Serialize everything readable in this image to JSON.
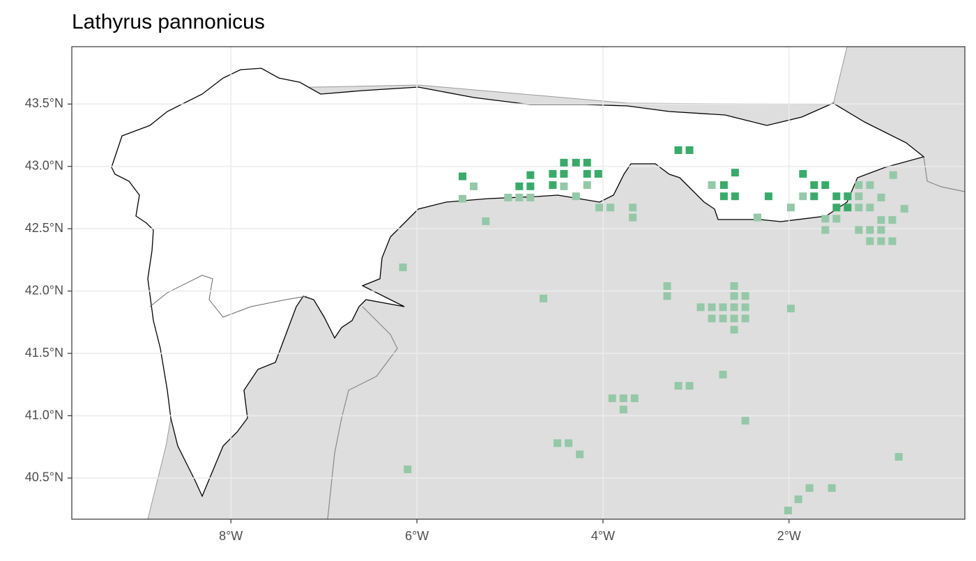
{
  "chart_data": {
    "type": "map-points",
    "title": "Lathyrus pannonicus",
    "xlim": [
      -9.71,
      -0.11
    ],
    "ylim": [
      40.17,
      43.96
    ],
    "xticks": [
      {
        "value": -8,
        "label": "8°W"
      },
      {
        "value": -6,
        "label": "6°W"
      },
      {
        "value": -4,
        "label": "4°W"
      },
      {
        "value": -2,
        "label": "2°W"
      }
    ],
    "yticks": [
      {
        "value": 40.5,
        "label": "40.5°N"
      },
      {
        "value": 41.0,
        "label": "41.0°N"
      },
      {
        "value": 41.5,
        "label": "41.5°N"
      },
      {
        "value": 42.0,
        "label": "42.0°N"
      },
      {
        "value": 42.5,
        "label": "42.5°N"
      },
      {
        "value": 43.0,
        "label": "43.0°N"
      },
      {
        "value": 43.5,
        "label": "43.5°N"
      }
    ],
    "grid": true,
    "series": [
      {
        "color": "#95c8a8",
        "x": [
          -5.51,
          -5.39,
          -5.26,
          -5.02,
          -4.9,
          -4.78,
          -4.42,
          -4.29,
          -4.17,
          -4.04,
          -3.92,
          -3.68,
          -3.68,
          -6.15,
          -4.64,
          -3.31,
          -3.31,
          -2.95,
          -2.83,
          -2.71,
          -2.59,
          -2.47,
          -2.83,
          -2.71,
          -2.59,
          -2.47,
          -2.59,
          -2.59,
          -2.47,
          -2.59,
          -1.98,
          -1.98,
          -2.83,
          -2.34,
          -2.71,
          -3.19,
          -3.07,
          -3.9,
          -3.78,
          -3.66,
          -3.78,
          -2.47,
          -4.49,
          -4.37,
          -4.25,
          -6.1,
          -0.82,
          -2.01,
          -1.9,
          -1.78,
          -1.54,
          -1.85,
          -1.61,
          -1.61,
          -1.49,
          -1.25,
          -1.13,
          -1.25,
          -1.25,
          -1.13,
          -1.01,
          -0.88,
          -0.76,
          -1.01,
          -0.89,
          -1.25,
          -1.13,
          -1.01,
          -1.13,
          -1.01,
          -0.89,
          -1.37
        ],
        "y": [
          42.74,
          42.84,
          42.56,
          42.75,
          42.75,
          42.75,
          42.84,
          42.76,
          42.85,
          42.67,
          42.67,
          42.67,
          42.59,
          42.19,
          41.94,
          42.04,
          41.96,
          41.87,
          41.87,
          41.87,
          41.87,
          41.87,
          41.78,
          41.78,
          41.78,
          41.78,
          41.69,
          41.96,
          41.96,
          42.04,
          41.86,
          42.67,
          42.85,
          42.59,
          41.33,
          41.24,
          41.24,
          41.14,
          41.14,
          41.14,
          41.05,
          40.96,
          40.78,
          40.78,
          40.69,
          40.57,
          40.67,
          40.24,
          40.33,
          40.42,
          40.42,
          42.76,
          42.58,
          42.49,
          42.58,
          42.85,
          42.85,
          42.76,
          42.67,
          42.67,
          42.75,
          42.93,
          42.66,
          42.57,
          42.57,
          42.49,
          42.49,
          42.49,
          42.4,
          42.4,
          42.4,
          42.76
        ]
      },
      {
        "color": "#3aaa6a",
        "x": [
          -5.51,
          -4.9,
          -4.78,
          -4.78,
          -4.54,
          -4.42,
          -4.42,
          -4.29,
          -4.17,
          -4.17,
          -4.05,
          -4.54,
          -3.19,
          -3.07,
          -2.58,
          -2.7,
          -2.58,
          -2.7,
          -2.22,
          -1.85,
          -1.73,
          -1.61,
          -1.73,
          -1.49,
          -1.37,
          -1.49,
          -1.37
        ],
        "y": [
          42.92,
          42.84,
          42.84,
          42.93,
          42.94,
          42.94,
          43.03,
          43.03,
          43.03,
          42.94,
          42.94,
          42.85,
          43.13,
          43.13,
          42.95,
          42.85,
          42.76,
          42.76,
          42.76,
          42.94,
          42.85,
          42.85,
          42.76,
          42.76,
          42.76,
          42.67,
          42.67
        ]
      }
    ]
  }
}
